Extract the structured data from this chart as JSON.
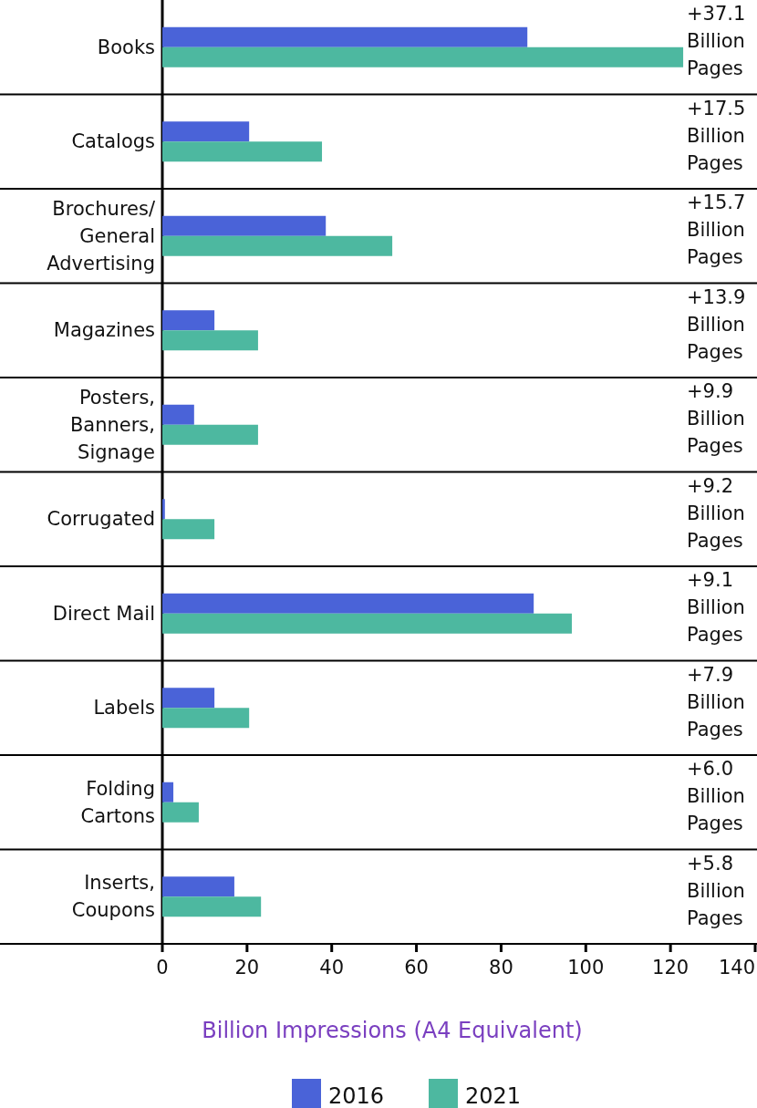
{
  "chart_data": {
    "type": "bar",
    "orientation": "horizontal",
    "xlabel": "Billion Impressions (A4 Equivalent)",
    "categories": [
      "Books",
      "Catalogs",
      "Brochures/ General Advertising",
      "Magazines",
      "Posters, Banners, Signage",
      "Corrugated",
      "Direct Mail",
      "Labels",
      "Folding Cartons",
      "Inserts, Coupons"
    ],
    "series": [
      {
        "name": "2016",
        "color": "#4a63d8",
        "values": [
          86.2,
          20.5,
          38.6,
          12.3,
          7.5,
          0.6,
          87.7,
          12.3,
          2.6,
          17.0
        ]
      },
      {
        "name": "2021",
        "color": "#4db8a0",
        "values": [
          123.0,
          37.7,
          54.3,
          22.6,
          22.6,
          12.3,
          96.7,
          20.5,
          8.6,
          23.3
        ]
      }
    ],
    "xlim": [
      0,
      140
    ],
    "xticks": [
      0,
      20,
      40,
      60,
      80,
      100,
      120,
      140
    ],
    "grid": false,
    "legend": "bottom",
    "annotations": [
      "+37.1 Billion Pages",
      "+17.5 Billion Pages",
      "+15.7 Billion Pages",
      "+13.9 Billion Pages",
      "+9.9 Billion Pages",
      "+9.2 Billion Pages",
      "+9.1 Billion Pages",
      "+7.9 Billion Pages",
      "+6.0 Billion Pages",
      "+5.8 Billion Pages"
    ]
  }
}
